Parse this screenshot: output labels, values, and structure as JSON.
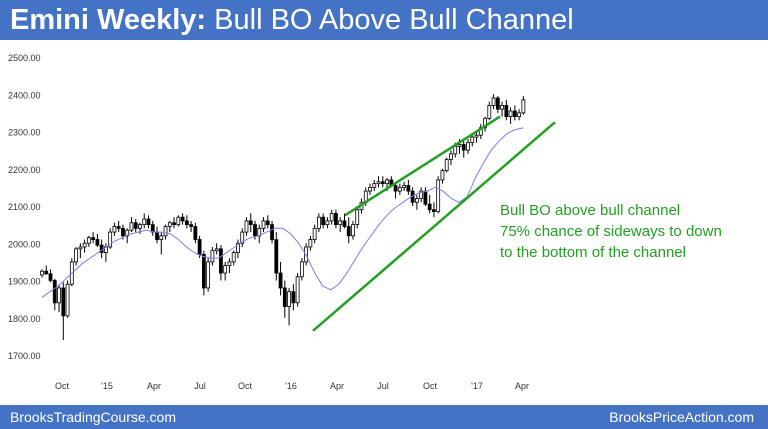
{
  "header": {
    "title_bold": "Emini Weekly:",
    "title_rest": "Bull BO Above Bull Channel"
  },
  "footer": {
    "left": "BrooksTradingCourse.com",
    "right": "BrooksPriceAction.com"
  },
  "colors": {
    "banner": "#4472c4",
    "annotation_green": "#22a022",
    "ma_line": "#7b7ee8",
    "candle": "#000000"
  },
  "chart_data": {
    "type": "candlestick",
    "y_ticks": [
      "2500.00",
      "2400.00",
      "2300.00",
      "2200.00",
      "2100.00",
      "2000.00",
      "1900.00",
      "1800.00",
      "1700.00"
    ],
    "ylim": [
      1680,
      2520
    ],
    "x_ticks": [
      "Oct",
      "'15",
      "Apr",
      "Jul",
      "Oct",
      "'16",
      "Apr",
      "Jul",
      "Oct",
      "'17",
      "Apr"
    ],
    "annotation": [
      "Bull BO above bull channel",
      "75% chance of sideways to down",
      "to the bottom of the channel"
    ],
    "series": [
      {
        "name": "",
        "kind": "weekly OHLC (approx.)",
        "values": [
          [
            1915,
            1930,
            1908,
            1925
          ],
          [
            1925,
            1940,
            1915,
            1918
          ],
          [
            1918,
            1930,
            1895,
            1900
          ],
          [
            1900,
            1905,
            1820,
            1840
          ],
          [
            1840,
            1890,
            1815,
            1880
          ],
          [
            1880,
            1895,
            1740,
            1805
          ],
          [
            1805,
            1900,
            1800,
            1890
          ],
          [
            1890,
            1960,
            1885,
            1950
          ],
          [
            1950,
            1990,
            1940,
            1985
          ],
          [
            1985,
            2000,
            1960,
            1990
          ],
          [
            1990,
            2010,
            1975,
            2000
          ],
          [
            2000,
            2020,
            1990,
            2015
          ],
          [
            2015,
            2030,
            2000,
            2010
          ],
          [
            2010,
            2025,
            1990,
            1995
          ],
          [
            1995,
            2010,
            1960,
            1975
          ],
          [
            1975,
            2000,
            1950,
            1990
          ],
          [
            1990,
            2040,
            1985,
            2030
          ],
          [
            2030,
            2055,
            2020,
            2045
          ],
          [
            2045,
            2060,
            2030,
            2040
          ],
          [
            2040,
            2050,
            2010,
            2020
          ],
          [
            2020,
            2040,
            2000,
            2035
          ],
          [
            2035,
            2070,
            2030,
            2055
          ],
          [
            2055,
            2065,
            2030,
            2040
          ],
          [
            2040,
            2055,
            2025,
            2050
          ],
          [
            2050,
            2080,
            2040,
            2065
          ],
          [
            2065,
            2075,
            2040,
            2050
          ],
          [
            2050,
            2060,
            2020,
            2030
          ],
          [
            2030,
            2045,
            2000,
            2010
          ],
          [
            2010,
            2030,
            1970,
            2020
          ],
          [
            2020,
            2050,
            2010,
            2045
          ],
          [
            2045,
            2060,
            2030,
            2055
          ],
          [
            2055,
            2070,
            2040,
            2050
          ],
          [
            2050,
            2075,
            2045,
            2070
          ],
          [
            2070,
            2080,
            2050,
            2060
          ],
          [
            2060,
            2075,
            2040,
            2050
          ],
          [
            2050,
            2060,
            2030,
            2045
          ],
          [
            2045,
            2055,
            2000,
            2010
          ],
          [
            2010,
            2020,
            1960,
            1970
          ],
          [
            1970,
            1980,
            1860,
            1880
          ],
          [
            1880,
            1960,
            1870,
            1950
          ],
          [
            1950,
            1990,
            1940,
            1980
          ],
          [
            1980,
            2000,
            1970,
            1985
          ],
          [
            1985,
            1995,
            1900,
            1920
          ],
          [
            1920,
            1950,
            1900,
            1940
          ],
          [
            1940,
            1960,
            1920,
            1950
          ],
          [
            1950,
            1980,
            1940,
            1975
          ],
          [
            1975,
            2010,
            1960,
            2000
          ],
          [
            2000,
            2040,
            1990,
            2030
          ],
          [
            2030,
            2070,
            2020,
            2060
          ],
          [
            2060,
            2080,
            2030,
            2050
          ],
          [
            2050,
            2060,
            2010,
            2020
          ],
          [
            2020,
            2050,
            2000,
            2040
          ],
          [
            2040,
            2070,
            2030,
            2060
          ],
          [
            2060,
            2075,
            2040,
            2050
          ],
          [
            2050,
            2060,
            2000,
            2010
          ],
          [
            2010,
            2030,
            1900,
            1920
          ],
          [
            1920,
            1950,
            1860,
            1880
          ],
          [
            1880,
            1900,
            1800,
            1830
          ],
          [
            1830,
            1880,
            1780,
            1870
          ],
          [
            1870,
            1890,
            1820,
            1840
          ],
          [
            1840,
            1920,
            1830,
            1910
          ],
          [
            1910,
            1960,
            1900,
            1950
          ],
          [
            1950,
            2000,
            1940,
            1990
          ],
          [
            1990,
            2020,
            1980,
            2010
          ],
          [
            2010,
            2050,
            2000,
            2040
          ],
          [
            2040,
            2080,
            2030,
            2070
          ],
          [
            2070,
            2080,
            2040,
            2050
          ],
          [
            2050,
            2070,
            2040,
            2060
          ],
          [
            2060,
            2090,
            2050,
            2080
          ],
          [
            2080,
            2090,
            2040,
            2050
          ],
          [
            2050,
            2070,
            2030,
            2060
          ],
          [
            2060,
            2080,
            2040,
            2045
          ],
          [
            2045,
            2070,
            2000,
            2020
          ],
          [
            2020,
            2060,
            2010,
            2050
          ],
          [
            2050,
            2100,
            2040,
            2090
          ],
          [
            2090,
            2120,
            2080,
            2110
          ],
          [
            2110,
            2150,
            2100,
            2140
          ],
          [
            2140,
            2160,
            2130,
            2150
          ],
          [
            2150,
            2170,
            2140,
            2160
          ],
          [
            2160,
            2180,
            2150,
            2165
          ],
          [
            2165,
            2180,
            2150,
            2160
          ],
          [
            2160,
            2175,
            2140,
            2170
          ],
          [
            2170,
            2180,
            2150,
            2155
          ],
          [
            2155,
            2165,
            2120,
            2140
          ],
          [
            2140,
            2160,
            2130,
            2150
          ],
          [
            2150,
            2165,
            2140,
            2155
          ],
          [
            2155,
            2170,
            2130,
            2140
          ],
          [
            2140,
            2150,
            2100,
            2110
          ],
          [
            2110,
            2130,
            2090,
            2120
          ],
          [
            2120,
            2150,
            2110,
            2140
          ],
          [
            2140,
            2150,
            2100,
            2105
          ],
          [
            2105,
            2130,
            2080,
            2090
          ],
          [
            2090,
            2110,
            2070,
            2085
          ],
          [
            2085,
            2180,
            2080,
            2170
          ],
          [
            2170,
            2200,
            2160,
            2195
          ],
          [
            2195,
            2230,
            2190,
            2225
          ],
          [
            2225,
            2250,
            2210,
            2240
          ],
          [
            2240,
            2270,
            2230,
            2260
          ],
          [
            2260,
            2280,
            2240,
            2265
          ],
          [
            2265,
            2275,
            2230,
            2250
          ],
          [
            2250,
            2280,
            2240,
            2270
          ],
          [
            2270,
            2290,
            2260,
            2285
          ],
          [
            2285,
            2300,
            2270,
            2290
          ],
          [
            2290,
            2320,
            2280,
            2310
          ],
          [
            2310,
            2340,
            2300,
            2335
          ],
          [
            2335,
            2380,
            2330,
            2370
          ],
          [
            2370,
            2400,
            2360,
            2390
          ],
          [
            2390,
            2395,
            2350,
            2360
          ],
          [
            2360,
            2380,
            2340,
            2370
          ],
          [
            2370,
            2385,
            2330,
            2340
          ],
          [
            2340,
            2365,
            2320,
            2355
          ],
          [
            2355,
            2370,
            2330,
            2340
          ],
          [
            2340,
            2360,
            2330,
            2350
          ],
          [
            2350,
            2395,
            2345,
            2385
          ]
        ]
      },
      {
        "name": "",
        "kind": "moving average (approx.)",
        "values": [
          1855,
          1870,
          1885,
          1905,
          1925,
          1945,
          1960,
          1975,
          1990,
          2005,
          2015,
          2025,
          2030,
          2035,
          2030,
          2030,
          2025,
          2010,
          1990,
          1975,
          1965,
          1960,
          1960,
          1975,
          1990,
          2005,
          2015,
          2020,
          2030,
          2040,
          2040,
          2025,
          2000,
          1965,
          1920,
          1885,
          1875,
          1890,
          1920,
          1955,
          1990,
          2020,
          2050,
          2075,
          2095,
          2110,
          2125,
          2135,
          2140,
          2150,
          2140,
          2120,
          2110,
          2125,
          2175,
          2215,
          2250,
          2275,
          2295,
          2305,
          2310
        ]
      }
    ],
    "channel_lines": [
      {
        "name": "",
        "from": [
          1,
          1765
        ],
        "to": [
          60,
          2325
        ]
      },
      {
        "name": "",
        "from": [
          1,
          2075
        ],
        "to": [
          43,
          2340
        ]
      }
    ]
  }
}
